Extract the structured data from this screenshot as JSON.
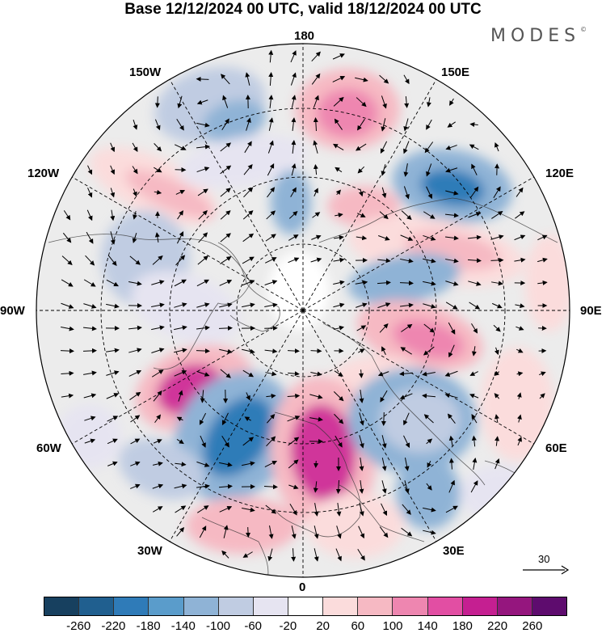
{
  "title": "Base 12/12/2024 00 UTC, valid 18/12/2024 00 UTC",
  "brand": "MODES",
  "brand_mark": "©",
  "longitude_labels": {
    "n180": "180",
    "e150": "150E",
    "e120": "120E",
    "e90": "90E",
    "e60": "60E",
    "e30": "30E",
    "s0": "0",
    "w30": "30W",
    "w60": "60W",
    "w90": "90W",
    "w120": "120W",
    "w150": "150W"
  },
  "reference_vector": {
    "label": "30"
  },
  "colorbar": {
    "colors": [
      "#17405f",
      "#205f8f",
      "#2f7bb8",
      "#5a9ccb",
      "#8fb3d6",
      "#c0cce2",
      "#e6e4f1",
      "#ffffff",
      "#fbdcdc",
      "#f6b9c3",
      "#ee86b0",
      "#e24ea3",
      "#c51f91",
      "#95167e",
      "#5e0c6e"
    ],
    "ticks": [
      "-260",
      "-220",
      "-180",
      "-140",
      "-100",
      "-60",
      "-20",
      "20",
      "60",
      "100",
      "140",
      "180",
      "220",
      "260"
    ]
  },
  "anomaly_colors": {
    "strong_neg": "#2f7bb8",
    "neg": "#8fb3d6",
    "weak_neg": "#c0cce2",
    "faint_neg": "#e6e4f1",
    "faint_pos": "#fbdcdc",
    "pos": "#f6b9c3",
    "strong_pos": "#ee86b0",
    "max_pos": "#d0349a",
    "neutral": "#ececec"
  }
}
